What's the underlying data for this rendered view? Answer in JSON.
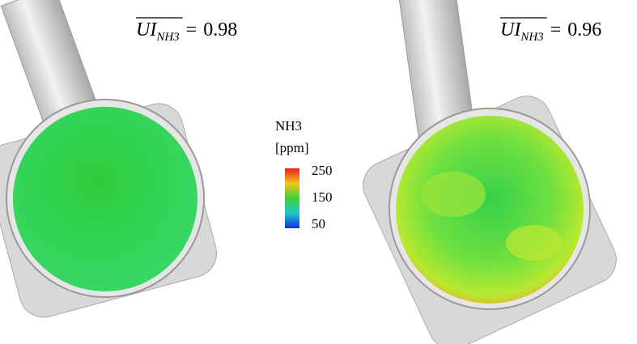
{
  "panels": [
    {
      "metric": "UI",
      "subscript": "NH3",
      "relation": "=",
      "value": 0.98
    },
    {
      "metric": "UI",
      "subscript": "NH3",
      "relation": "=",
      "value": 0.96
    }
  ],
  "colorbar": {
    "title": "NH3",
    "unit": "[ppm]",
    "ticks": [
      250,
      150,
      50
    ]
  }
}
